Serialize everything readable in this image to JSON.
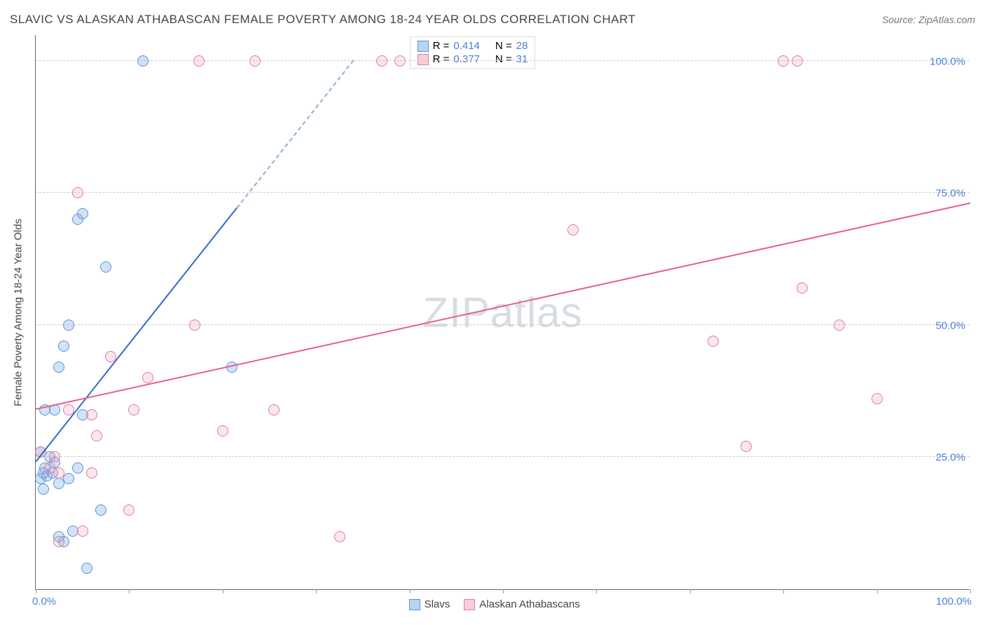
{
  "title": "SLAVIC VS ALASKAN ATHABASCAN FEMALE POVERTY AMONG 18-24 YEAR OLDS CORRELATION CHART",
  "source": "Source: ZipAtlas.com",
  "y_axis_title": "Female Poverty Among 18-24 Year Olds",
  "watermark": "ZIPatlas",
  "chart": {
    "type": "scatter",
    "background_color": "#ffffff",
    "grid_color": "#cccccc",
    "axis_color": "#666666",
    "tick_label_color": "#4a7fd4",
    "axis_title_color": "#444444",
    "axis_title_fontsize": 15,
    "tick_fontsize": 15,
    "xlim": [
      0,
      100
    ],
    "ylim": [
      0,
      105
    ],
    "y_gridlines": [
      25,
      50,
      75,
      100
    ],
    "y_tick_labels": [
      "25.0%",
      "50.0%",
      "75.0%",
      "100.0%"
    ],
    "x_tick_positions": [
      0,
      10,
      20,
      30,
      40,
      50,
      60,
      70,
      80,
      90,
      100
    ],
    "x_visible_labels": {
      "0": "0.0%",
      "100": "100.0%"
    },
    "legend_top": {
      "rows": [
        {
          "color_fill": "#b9d4f2",
          "color_border": "#5a94db",
          "r_label": "R =",
          "r_value": "0.414",
          "n_label": "N =",
          "n_value": "28"
        },
        {
          "color_fill": "#f7cdd8",
          "color_border": "#e37aa0",
          "r_label": "R =",
          "r_value": "0.377",
          "n_label": "N =",
          "n_value": "31"
        }
      ]
    },
    "legend_bottom": {
      "items": [
        {
          "color_fill": "#b9d4f2",
          "color_border": "#5a94db",
          "label": "Slavs"
        },
        {
          "color_fill": "#f7cdd8",
          "color_border": "#e37aa0",
          "label": "Alaskan Athabascans"
        }
      ]
    },
    "series": [
      {
        "name": "Slavs",
        "marker_fill": "rgba(130,175,225,0.35)",
        "marker_border": "#5a94db",
        "marker_size": 16,
        "trend": {
          "x1": 0,
          "y1": 24,
          "x2": 21.5,
          "y2": 72,
          "color": "#3268c8",
          "width": 2.5,
          "dash_extension": {
            "x2": 34,
            "y2": 100,
            "color": "#8faed8"
          }
        },
        "points": [
          {
            "x": 0.5,
            "y": 21
          },
          {
            "x": 1.2,
            "y": 21.5
          },
          {
            "x": 1.0,
            "y": 23
          },
          {
            "x": 1.8,
            "y": 22
          },
          {
            "x": 2.5,
            "y": 20
          },
          {
            "x": 1.5,
            "y": 25
          },
          {
            "x": 0.8,
            "y": 19
          },
          {
            "x": 2.0,
            "y": 24
          },
          {
            "x": 3.5,
            "y": 21
          },
          {
            "x": 4.5,
            "y": 23
          },
          {
            "x": 3.0,
            "y": 9
          },
          {
            "x": 4.0,
            "y": 11
          },
          {
            "x": 5.5,
            "y": 4
          },
          {
            "x": 7.0,
            "y": 15
          },
          {
            "x": 5.0,
            "y": 33
          },
          {
            "x": 2.0,
            "y": 34
          },
          {
            "x": 2.5,
            "y": 42
          },
          {
            "x": 3.0,
            "y": 46
          },
          {
            "x": 3.5,
            "y": 50
          },
          {
            "x": 7.5,
            "y": 61
          },
          {
            "x": 4.5,
            "y": 70
          },
          {
            "x": 5.0,
            "y": 71
          },
          {
            "x": 11.5,
            "y": 100
          },
          {
            "x": 21.0,
            "y": 42
          },
          {
            "x": 2.5,
            "y": 10
          },
          {
            "x": 1.0,
            "y": 34
          },
          {
            "x": 0.5,
            "y": 26
          },
          {
            "x": 0.8,
            "y": 22
          }
        ]
      },
      {
        "name": "Alaskan Athabascans",
        "marker_fill": "rgba(235,160,185,0.25)",
        "marker_border": "#e37aa0",
        "marker_size": 16,
        "trend": {
          "x1": 0,
          "y1": 34,
          "x2": 100,
          "y2": 73,
          "color": "#e85d8e",
          "width": 2.5
        },
        "points": [
          {
            "x": 0.5,
            "y": 26
          },
          {
            "x": 1.5,
            "y": 23
          },
          {
            "x": 2.0,
            "y": 25
          },
          {
            "x": 3.5,
            "y": 34
          },
          {
            "x": 6.0,
            "y": 33
          },
          {
            "x": 10.5,
            "y": 34
          },
          {
            "x": 4.5,
            "y": 75
          },
          {
            "x": 8.0,
            "y": 44
          },
          {
            "x": 6.5,
            "y": 29
          },
          {
            "x": 6.0,
            "y": 22
          },
          {
            "x": 10.0,
            "y": 15
          },
          {
            "x": 12.0,
            "y": 40
          },
          {
            "x": 17.0,
            "y": 50
          },
          {
            "x": 17.5,
            "y": 100
          },
          {
            "x": 20.0,
            "y": 30
          },
          {
            "x": 23.5,
            "y": 100
          },
          {
            "x": 25.5,
            "y": 34
          },
          {
            "x": 32.5,
            "y": 10
          },
          {
            "x": 37.0,
            "y": 100
          },
          {
            "x": 39.0,
            "y": 100
          },
          {
            "x": 57.5,
            "y": 68
          },
          {
            "x": 72.5,
            "y": 47
          },
          {
            "x": 76.0,
            "y": 27
          },
          {
            "x": 80.0,
            "y": 100
          },
          {
            "x": 81.5,
            "y": 100
          },
          {
            "x": 82.0,
            "y": 57
          },
          {
            "x": 86.0,
            "y": 50
          },
          {
            "x": 90.0,
            "y": 36
          },
          {
            "x": 2.5,
            "y": 22
          },
          {
            "x": 2.5,
            "y": 9
          },
          {
            "x": 5.0,
            "y": 11
          }
        ]
      }
    ]
  }
}
